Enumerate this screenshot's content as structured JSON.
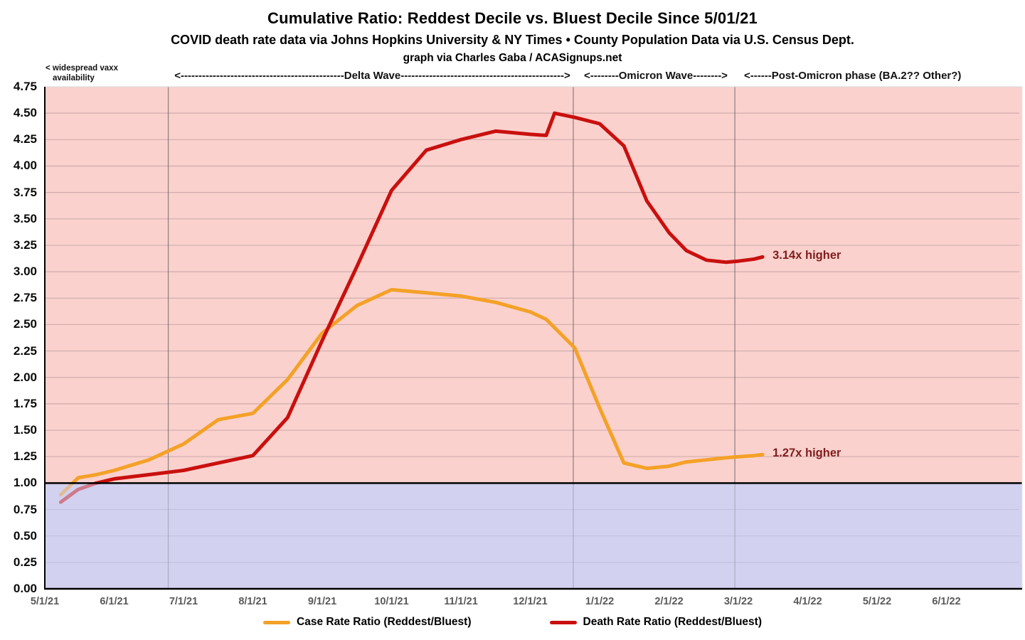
{
  "header": {
    "title": "Cumulative Ratio: Reddest Decile vs. Bluest Decile Since 5/01/21",
    "subtitle": "COVID death rate data via Johns Hopkins University & NY Times • County Population Data via U.S. Census Dept.",
    "credit": "graph via Charles Gaba / ACASignups.net"
  },
  "annotations": {
    "vaxx_line1": "< widespread vaxx",
    "vaxx_line2": "availability",
    "delta": "<----------------------------------------------Delta Wave---------------------------------------------->",
    "omicron": "<--------Omicron Wave-------->",
    "post": "<------Post-Omicron phase (BA.2?? Other?)"
  },
  "chart_data": {
    "type": "line",
    "title": "Cumulative Ratio: Reddest Decile vs. Bluest Decile Since 5/01/21",
    "xlabel": "",
    "ylabel": "",
    "x_unit": "months since 5/1/21",
    "x_axis": {
      "tick_labels": [
        "5/1/21",
        "6/1/21",
        "7/1/21",
        "8/1/21",
        "9/1/21",
        "10/1/21",
        "11/1/21",
        "12/1/21",
        "1/1/22",
        "2/1/22",
        "3/1/22",
        "4/1/22",
        "5/1/22",
        "6/1/22"
      ]
    },
    "y_axis": {
      "min": 0,
      "max": 4.75,
      "tick_step": 0.25,
      "tick_labels": [
        "4.75",
        "4.50",
        "4.25",
        "4.00",
        "3.75",
        "3.50",
        "3.25",
        "3.00",
        "2.75",
        "2.50",
        "2.25",
        "2.00",
        "1.75",
        "1.50",
        "1.25",
        "1.00",
        "0.75",
        "0.50",
        "0.25",
        "0.00"
      ]
    },
    "baseline_value": 1.0,
    "phase_boundaries_m": [
      1.78,
      7.62,
      9.95
    ],
    "colors": {
      "case_line": "#F4A127",
      "death_line": "#C9100E",
      "above_band": "#FAD1CD",
      "below_band": "#D2D1F0",
      "end_label_color": "#801D1D",
      "x_tick_color": "#595959"
    },
    "series": [
      {
        "name": "Case Rate Ratio (Reddest/Bluest)",
        "color": "#F4A127",
        "end_label": "1.27x higher",
        "final_value": 1.27,
        "points": [
          [
            0.23,
            0.89
          ],
          [
            0.48,
            1.05
          ],
          [
            0.74,
            1.08
          ],
          [
            1,
            1.12
          ],
          [
            1.5,
            1.22
          ],
          [
            2,
            1.37
          ],
          [
            2.5,
            1.6
          ],
          [
            3,
            1.66
          ],
          [
            3.5,
            1.98
          ],
          [
            4,
            2.42
          ],
          [
            4.5,
            2.68
          ],
          [
            5,
            2.83
          ],
          [
            5.5,
            2.8
          ],
          [
            6,
            2.77
          ],
          [
            6.5,
            2.71
          ],
          [
            7,
            2.62
          ],
          [
            7.23,
            2.55
          ],
          [
            7.64,
            2.28
          ],
          [
            8,
            1.71
          ],
          [
            8.35,
            1.19
          ],
          [
            8.68,
            1.14
          ],
          [
            9,
            1.16
          ],
          [
            9.25,
            1.2
          ],
          [
            9.54,
            1.22
          ],
          [
            9.82,
            1.24
          ],
          [
            10,
            1.25
          ],
          [
            10.23,
            1.26
          ],
          [
            10.35,
            1.27
          ]
        ]
      },
      {
        "name": "Death Rate Ratio (Reddest/Bluest)",
        "color": "#C9100E",
        "end_label": "3.14x higher",
        "final_value": 3.14,
        "points": [
          [
            0.23,
            0.82
          ],
          [
            0.48,
            0.94
          ],
          [
            0.74,
            1.0
          ],
          [
            1,
            1.04
          ],
          [
            1.5,
            1.08
          ],
          [
            2,
            1.12
          ],
          [
            2.5,
            1.19
          ],
          [
            3,
            1.26
          ],
          [
            3.5,
            1.62
          ],
          [
            4,
            2.35
          ],
          [
            4.5,
            3.05
          ],
          [
            5,
            3.77
          ],
          [
            5.5,
            4.15
          ],
          [
            6,
            4.25
          ],
          [
            6.5,
            4.33
          ],
          [
            7,
            4.3
          ],
          [
            7.23,
            4.29
          ],
          [
            7.35,
            4.5
          ],
          [
            7.64,
            4.46
          ],
          [
            8,
            4.4
          ],
          [
            8.35,
            4.19
          ],
          [
            8.68,
            3.67
          ],
          [
            9,
            3.37
          ],
          [
            9.25,
            3.2
          ],
          [
            9.54,
            3.11
          ],
          [
            9.82,
            3.09
          ],
          [
            10,
            3.1
          ],
          [
            10.23,
            3.12
          ],
          [
            10.35,
            3.14
          ]
        ]
      }
    ]
  }
}
